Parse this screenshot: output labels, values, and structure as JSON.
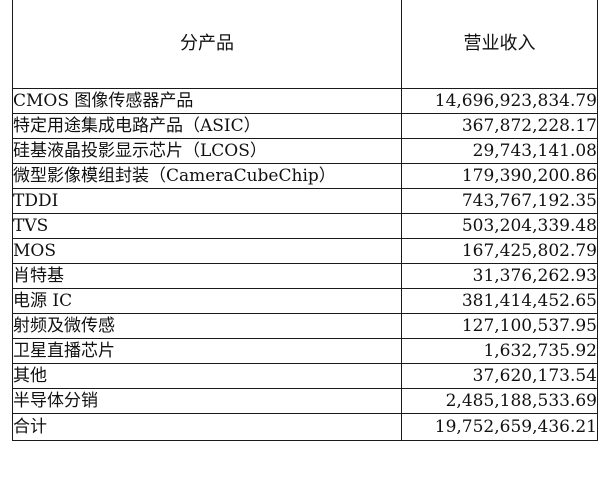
{
  "table": {
    "headers": {
      "product": "分产品",
      "revenue": "营业收入"
    },
    "rows": [
      {
        "product": "CMOS 图像传感器产品",
        "revenue": "14,696,923,834.79"
      },
      {
        "product": "特定用途集成电路产品（ASIC）",
        "revenue": "367,872,228.17"
      },
      {
        "product": "硅基液晶投影显示芯片（LCOS）",
        "revenue": "29,743,141.08"
      },
      {
        "product": "微型影像模组封装（CameraCubeChip）",
        "revenue": "179,390,200.86"
      },
      {
        "product": "TDDI",
        "revenue": "743,767,192.35"
      },
      {
        "product": "TVS",
        "revenue": "503,204,339.48"
      },
      {
        "product": "MOS",
        "revenue": "167,425,802.79"
      },
      {
        "product": "肖特基",
        "revenue": "31,376,262.93"
      },
      {
        "product": "电源 IC",
        "revenue": "381,414,452.65"
      },
      {
        "product": "射频及微传感",
        "revenue": "127,100,537.95"
      },
      {
        "product": "卫星直播芯片",
        "revenue": "1,632,735.92"
      },
      {
        "product": "其他",
        "revenue": "37,620,173.54"
      },
      {
        "product": "半导体分销",
        "revenue": "2,485,188,533.69"
      }
    ],
    "total": {
      "product": "合计",
      "revenue": "19,752,659,436.21"
    }
  }
}
